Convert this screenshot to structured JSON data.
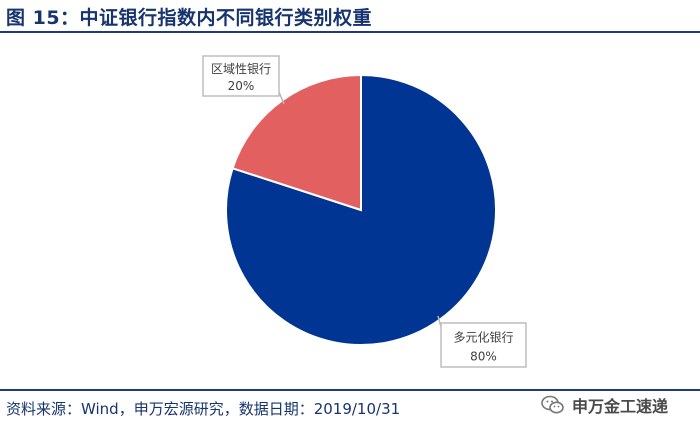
{
  "header": {
    "figure_title": "图 15：中证银行指数内不同银行类别权重"
  },
  "chart_data": {
    "type": "pie",
    "title": "",
    "slices": [
      {
        "label": "多元化银行",
        "value": 80,
        "value_label": "80%",
        "color": "#003593"
      },
      {
        "label": "区域性银行",
        "value": 20,
        "value_label": "20%",
        "color": "#e26060"
      }
    ],
    "start": "12 o'clock",
    "direction": "clockwise",
    "legend": "none",
    "label_style": "callout boxes"
  },
  "footer": {
    "source_text": "资料来源：Wind，申万宏源研究，数据日期：2019/10/31",
    "watermark_text": "申万金工速递",
    "watermark_icon": "wechat-icon"
  }
}
